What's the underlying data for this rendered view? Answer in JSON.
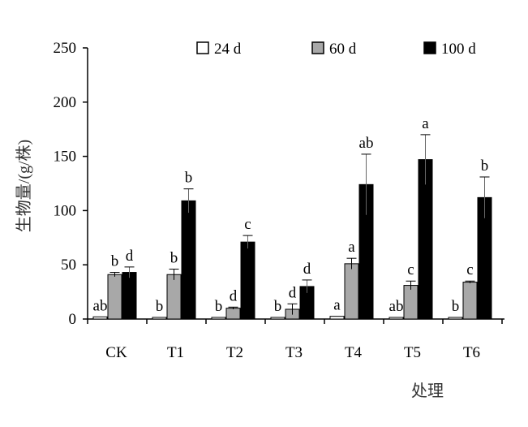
{
  "chart_data": {
    "type": "bar",
    "title": "",
    "xlabel": "处理",
    "ylabel": "生物量/(g/株)",
    "ylim": [
      0,
      250
    ],
    "yticks": [
      0,
      50,
      100,
      150,
      200,
      250
    ],
    "categories": [
      "CK",
      "T1",
      "T2",
      "T3",
      "T4",
      "T5",
      "T6"
    ],
    "legend_position": "top",
    "series": [
      {
        "name": "24 d",
        "color": "#ffffff",
        "values": [
          2,
          1.5,
          1.5,
          1.5,
          2.5,
          1.5,
          1.5
        ],
        "errors": [
          0,
          0,
          0,
          0,
          0,
          0,
          0
        ],
        "letters": [
          "ab",
          "b",
          "b",
          "b",
          "a",
          "ab",
          "b"
        ]
      },
      {
        "name": "60 d",
        "color": "#a8a8a8",
        "values": [
          41,
          41,
          10,
          9,
          51,
          31,
          34
        ],
        "errors": [
          2,
          5,
          1,
          5,
          5,
          4,
          1
        ],
        "letters": [
          "b",
          "b",
          "d",
          "d",
          "a",
          "c",
          "c"
        ]
      },
      {
        "name": "100 d",
        "color": "#000000",
        "values": [
          43,
          109,
          71,
          30,
          124,
          147,
          112
        ],
        "errors": [
          5,
          11,
          6,
          6,
          28,
          23,
          19
        ],
        "letters": [
          "d",
          "b",
          "c",
          "d",
          "ab",
          "a",
          "b"
        ]
      }
    ]
  }
}
